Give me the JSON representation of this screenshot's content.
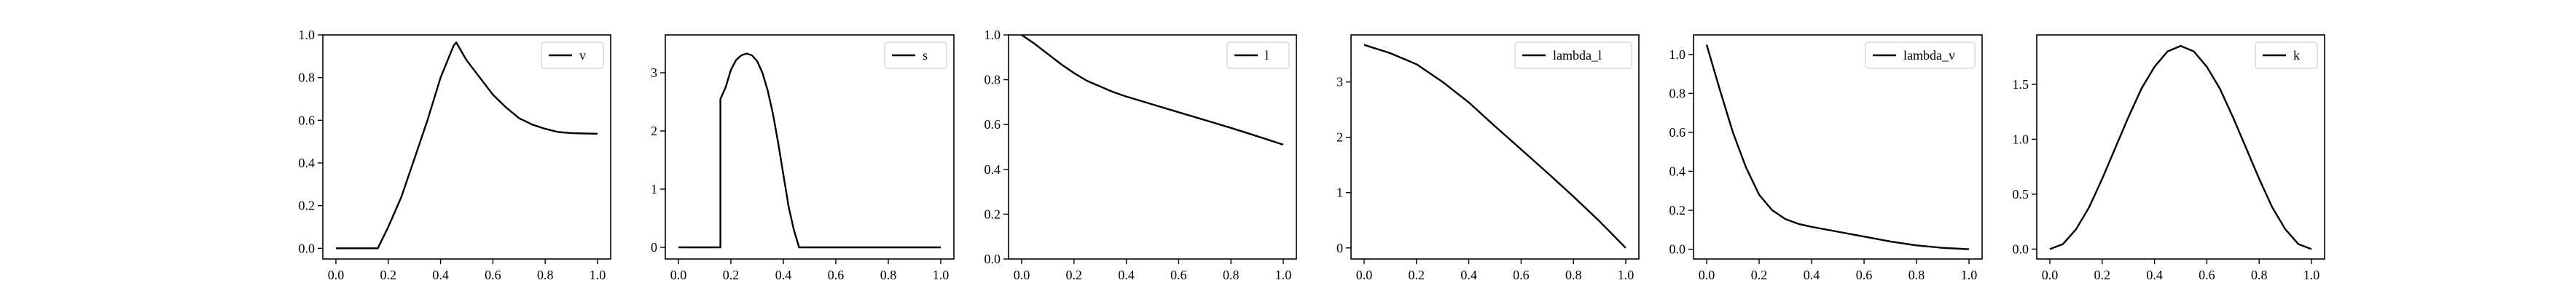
{
  "chart_data": [
    {
      "type": "line",
      "xlim": [
        -0.05,
        1.05
      ],
      "ylim": [
        -0.05,
        1.0
      ],
      "xticks": [
        0.0,
        0.2,
        0.4,
        0.6,
        0.8,
        1.0
      ],
      "xtick_labels": [
        "0.0",
        "0.2",
        "0.4",
        "0.6",
        "0.8",
        "1.0"
      ],
      "yticks": [
        0.0,
        0.2,
        0.4,
        0.6,
        0.8,
        1.0
      ],
      "ytick_labels": [
        "0.0",
        "0.2",
        "0.4",
        "0.6",
        "0.8",
        "1.0"
      ],
      "legend": "top-right",
      "grid": false,
      "series": [
        {
          "name": "v",
          "color": "#000000",
          "x": [
            0.0,
            0.16,
            0.2,
            0.25,
            0.3,
            0.35,
            0.4,
            0.45,
            0.46,
            0.5,
            0.55,
            0.6,
            0.65,
            0.7,
            0.75,
            0.8,
            0.85,
            0.9,
            0.95,
            1.0
          ],
          "y": [
            0.0,
            0.0,
            0.1,
            0.24,
            0.42,
            0.6,
            0.8,
            0.95,
            0.965,
            0.88,
            0.8,
            0.72,
            0.66,
            0.61,
            0.58,
            0.56,
            0.545,
            0.54,
            0.538,
            0.537
          ]
        }
      ]
    },
    {
      "type": "line",
      "xlim": [
        -0.05,
        1.05
      ],
      "ylim": [
        -0.2,
        3.65
      ],
      "xticks": [
        0.0,
        0.2,
        0.4,
        0.6,
        0.8,
        1.0
      ],
      "xtick_labels": [
        "0.0",
        "0.2",
        "0.4",
        "0.6",
        "0.8",
        "1.0"
      ],
      "yticks": [
        0,
        1,
        2,
        3
      ],
      "ytick_labels": [
        "0",
        "1",
        "2",
        "3"
      ],
      "legend": "top-right",
      "grid": false,
      "series": [
        {
          "name": "s",
          "color": "#000000",
          "x": [
            0.0,
            0.16,
            0.16,
            0.18,
            0.2,
            0.22,
            0.24,
            0.26,
            0.28,
            0.3,
            0.32,
            0.34,
            0.36,
            0.38,
            0.4,
            0.42,
            0.44,
            0.46,
            0.46,
            1.0
          ],
          "y": [
            0.0,
            0.0,
            2.55,
            2.75,
            3.05,
            3.22,
            3.3,
            3.33,
            3.3,
            3.2,
            3.0,
            2.7,
            2.3,
            1.8,
            1.25,
            0.7,
            0.3,
            0.0,
            0.0,
            0.0
          ]
        }
      ]
    },
    {
      "type": "line",
      "xlim": [
        -0.05,
        1.05
      ],
      "ylim": [
        0.0,
        1.0
      ],
      "xticks": [
        0.0,
        0.2,
        0.4,
        0.6,
        0.8,
        1.0
      ],
      "xtick_labels": [
        "0.0",
        "0.2",
        "0.4",
        "0.6",
        "0.8",
        "1.0"
      ],
      "yticks": [
        0.0,
        0.2,
        0.4,
        0.6,
        0.8,
        1.0
      ],
      "ytick_labels": [
        "0.0",
        "0.2",
        "0.4",
        "0.6",
        "0.8",
        "1.0"
      ],
      "legend": "top-right",
      "grid": false,
      "series": [
        {
          "name": "l",
          "color": "#000000",
          "x": [
            0.0,
            0.05,
            0.1,
            0.15,
            0.2,
            0.25,
            0.3,
            0.35,
            0.4,
            0.5,
            0.6,
            0.7,
            0.8,
            0.9,
            1.0
          ],
          "y": [
            1.0,
            0.96,
            0.915,
            0.87,
            0.83,
            0.795,
            0.77,
            0.745,
            0.725,
            0.69,
            0.655,
            0.62,
            0.585,
            0.548,
            0.51
          ]
        }
      ]
    },
    {
      "type": "line",
      "xlim": [
        -0.05,
        1.05
      ],
      "ylim": [
        -0.2,
        3.85
      ],
      "xticks": [
        0.0,
        0.2,
        0.4,
        0.6,
        0.8,
        1.0
      ],
      "xtick_labels": [
        "0.0",
        "0.2",
        "0.4",
        "0.6",
        "0.8",
        "1.0"
      ],
      "yticks": [
        0,
        1,
        2,
        3
      ],
      "ytick_labels": [
        "0",
        "1",
        "2",
        "3"
      ],
      "legend": "top-right",
      "grid": false,
      "series": [
        {
          "name": "lambda_l",
          "color": "#000000",
          "x": [
            0.0,
            0.1,
            0.2,
            0.3,
            0.4,
            0.5,
            0.6,
            0.7,
            0.8,
            0.9,
            1.0
          ],
          "y": [
            3.67,
            3.52,
            3.32,
            3.0,
            2.63,
            2.2,
            1.78,
            1.36,
            0.93,
            0.48,
            0.0
          ]
        }
      ]
    },
    {
      "type": "line",
      "xlim": [
        -0.05,
        1.05
      ],
      "ylim": [
        -0.05,
        1.1
      ],
      "xticks": [
        0.0,
        0.2,
        0.4,
        0.6,
        0.8,
        1.0
      ],
      "xtick_labels": [
        "0.0",
        "0.2",
        "0.4",
        "0.6",
        "0.8",
        "1.0"
      ],
      "yticks": [
        0.0,
        0.2,
        0.4,
        0.6,
        0.8,
        1.0
      ],
      "ytick_labels": [
        "0.0",
        "0.2",
        "0.4",
        "0.6",
        "0.8",
        "1.0"
      ],
      "legend": "top-right",
      "grid": false,
      "series": [
        {
          "name": "lambda_v",
          "color": "#000000",
          "x": [
            0.0,
            0.05,
            0.1,
            0.15,
            0.2,
            0.25,
            0.3,
            0.35,
            0.4,
            0.5,
            0.6,
            0.7,
            0.8,
            0.9,
            1.0
          ],
          "y": [
            1.05,
            0.82,
            0.6,
            0.42,
            0.28,
            0.2,
            0.155,
            0.13,
            0.115,
            0.09,
            0.065,
            0.04,
            0.02,
            0.007,
            0.0
          ]
        }
      ]
    },
    {
      "type": "line",
      "xlim": [
        -0.05,
        1.05
      ],
      "ylim": [
        -0.09,
        1.95
      ],
      "xticks": [
        0.0,
        0.2,
        0.4,
        0.6,
        0.8,
        1.0
      ],
      "xtick_labels": [
        "0.0",
        "0.2",
        "0.4",
        "0.6",
        "0.8",
        "1.0"
      ],
      "yticks": [
        0.0,
        0.5,
        1.0,
        1.5
      ],
      "ytick_labels": [
        "0.0",
        "0.5",
        "1.0",
        "1.5"
      ],
      "legend": "top-right",
      "grid": false,
      "series": [
        {
          "name": "k",
          "color": "#000000",
          "x": [
            0.0,
            0.05,
            0.1,
            0.15,
            0.2,
            0.25,
            0.3,
            0.35,
            0.4,
            0.45,
            0.5,
            0.55,
            0.6,
            0.65,
            0.7,
            0.75,
            0.8,
            0.85,
            0.9,
            0.95,
            1.0
          ],
          "y": [
            0.0,
            0.045,
            0.18,
            0.38,
            0.64,
            0.92,
            1.2,
            1.46,
            1.66,
            1.8,
            1.85,
            1.8,
            1.66,
            1.46,
            1.2,
            0.92,
            0.64,
            0.38,
            0.18,
            0.045,
            0.0
          ]
        }
      ]
    }
  ]
}
